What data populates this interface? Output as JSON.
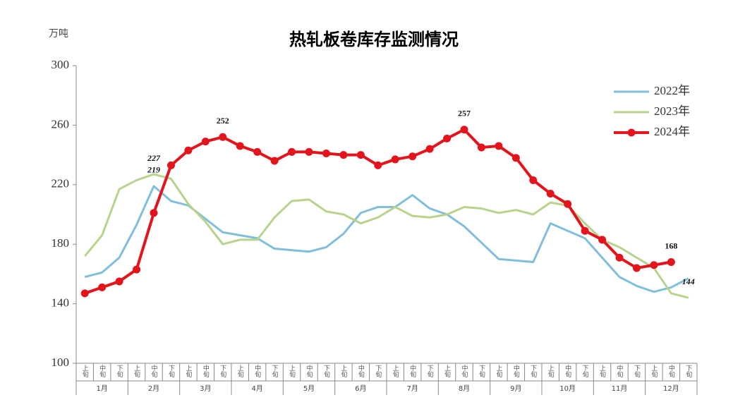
{
  "chart_data": {
    "type": "line",
    "title": "热轧板卷库存监测情况",
    "y_label": "万吨",
    "categories": [
      "上旬",
      "中旬",
      "下旬",
      "上旬",
      "中旬",
      "下旬",
      "上旬",
      "中旬",
      "下旬",
      "上旬",
      "中旬",
      "下旬",
      "上旬",
      "中旬",
      "下旬",
      "上旬",
      "中旬",
      "下旬",
      "上旬",
      "中旬",
      "下旬",
      "上旬",
      "中旬",
      "下旬",
      "上旬",
      "中旬",
      "下旬",
      "上旬",
      "中旬",
      "下旬",
      "上旬",
      "中旬",
      "下旬",
      "上旬",
      "中旬",
      "下旬"
    ],
    "months": [
      "1月",
      "2月",
      "3月",
      "4月",
      "5月",
      "6月",
      "7月",
      "8月",
      "9月",
      "10月",
      "11月",
      "12月"
    ],
    "ylim": [
      100,
      300
    ],
    "yticks": [
      100,
      140,
      180,
      220,
      260,
      300
    ],
    "legend": "top-right",
    "series": [
      {
        "name": "2022年",
        "color": "#7fbfdc",
        "markers": false,
        "values": [
          158,
          161,
          171,
          193,
          219,
          209,
          206,
          197,
          188,
          186,
          184,
          177,
          176,
          175,
          178,
          187,
          201,
          205,
          205,
          213,
          204,
          200,
          192,
          181,
          170,
          169,
          168,
          194,
          189,
          184,
          171,
          158,
          152,
          148,
          151,
          157
        ],
        "value_labels": [
          null,
          null,
          null,
          null,
          "219",
          null,
          null,
          null,
          null,
          null,
          null,
          null,
          null,
          null,
          null,
          null,
          null,
          null,
          null,
          null,
          null,
          null,
          null,
          null,
          null,
          null,
          null,
          null,
          null,
          null,
          null,
          null,
          null,
          null,
          null,
          null
        ]
      },
      {
        "name": "2023年",
        "color": "#b8d38c",
        "markers": false,
        "values": [
          172,
          186,
          217,
          223,
          227,
          224,
          207,
          195,
          180,
          183,
          183,
          198,
          209,
          210,
          202,
          200,
          194,
          198,
          205,
          199,
          198,
          200,
          205,
          204,
          201,
          203,
          200,
          208,
          206,
          194,
          183,
          178,
          171,
          164,
          147,
          144
        ],
        "value_labels": [
          null,
          null,
          null,
          null,
          "227",
          null,
          null,
          null,
          null,
          null,
          null,
          null,
          null,
          null,
          null,
          null,
          null,
          null,
          null,
          null,
          null,
          null,
          null,
          null,
          null,
          null,
          null,
          null,
          null,
          null,
          null,
          null,
          null,
          null,
          null,
          "144"
        ]
      },
      {
        "name": "2024年",
        "color": "#e3141b",
        "markers": true,
        "values": [
          147,
          151,
          155,
          163,
          201,
          233,
          243,
          249,
          252,
          246,
          242,
          236,
          242,
          242,
          241,
          240,
          240,
          233,
          237,
          239,
          244,
          251,
          257,
          245,
          246,
          238,
          223,
          214,
          207,
          189,
          183,
          171,
          164,
          166,
          168,
          null
        ],
        "value_labels": [
          null,
          null,
          null,
          null,
          null,
          null,
          null,
          null,
          "252",
          null,
          null,
          null,
          null,
          null,
          null,
          null,
          null,
          null,
          null,
          null,
          null,
          null,
          "257",
          null,
          null,
          null,
          null,
          null,
          null,
          null,
          null,
          null,
          null,
          null,
          "168",
          null
        ]
      }
    ]
  }
}
